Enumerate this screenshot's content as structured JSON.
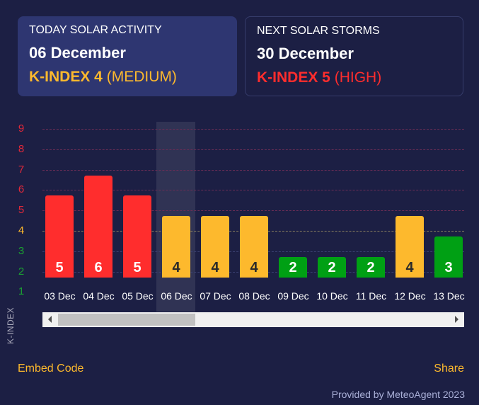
{
  "today": {
    "title": "TODAY SOLAR ACTIVITY",
    "date": "06 December",
    "kindex": "K-INDEX 4",
    "level": "(MEDIUM)",
    "color": "#fdb92d"
  },
  "next": {
    "title": "NEXT SOLAR STORMS",
    "date": "30 December",
    "kindex": "K-INDEX 5",
    "level": "(HIGH)",
    "color": "#ff2d2d"
  },
  "chart_data": {
    "type": "bar",
    "ylabel": "K-INDEX",
    "ylim": [
      1,
      9
    ],
    "yticks": [
      "9",
      "8",
      "7",
      "6",
      "5",
      "4",
      "3",
      "2",
      "1"
    ],
    "categories": [
      "03 Dec",
      "04 Dec",
      "05 Dec",
      "06 Dec",
      "07 Dec",
      "08 Dec",
      "09 Dec",
      "10 Dec",
      "11 Dec",
      "12 Dec",
      "13 Dec"
    ],
    "values": [
      5,
      6,
      5,
      4,
      4,
      4,
      2,
      2,
      2,
      4,
      3
    ],
    "labels": [
      "5",
      "6",
      "5",
      "4",
      "4",
      "4",
      "2",
      "2",
      "2",
      "4",
      "3"
    ],
    "highlighted": "06 Dec",
    "colors": {
      "high": "#ff2d2d",
      "medium": "#fdb92d",
      "low": "#00a014"
    }
  },
  "footer": {
    "embed": "Embed Code",
    "share": "Share",
    "provided": "Provided by MeteoAgent 2023"
  }
}
